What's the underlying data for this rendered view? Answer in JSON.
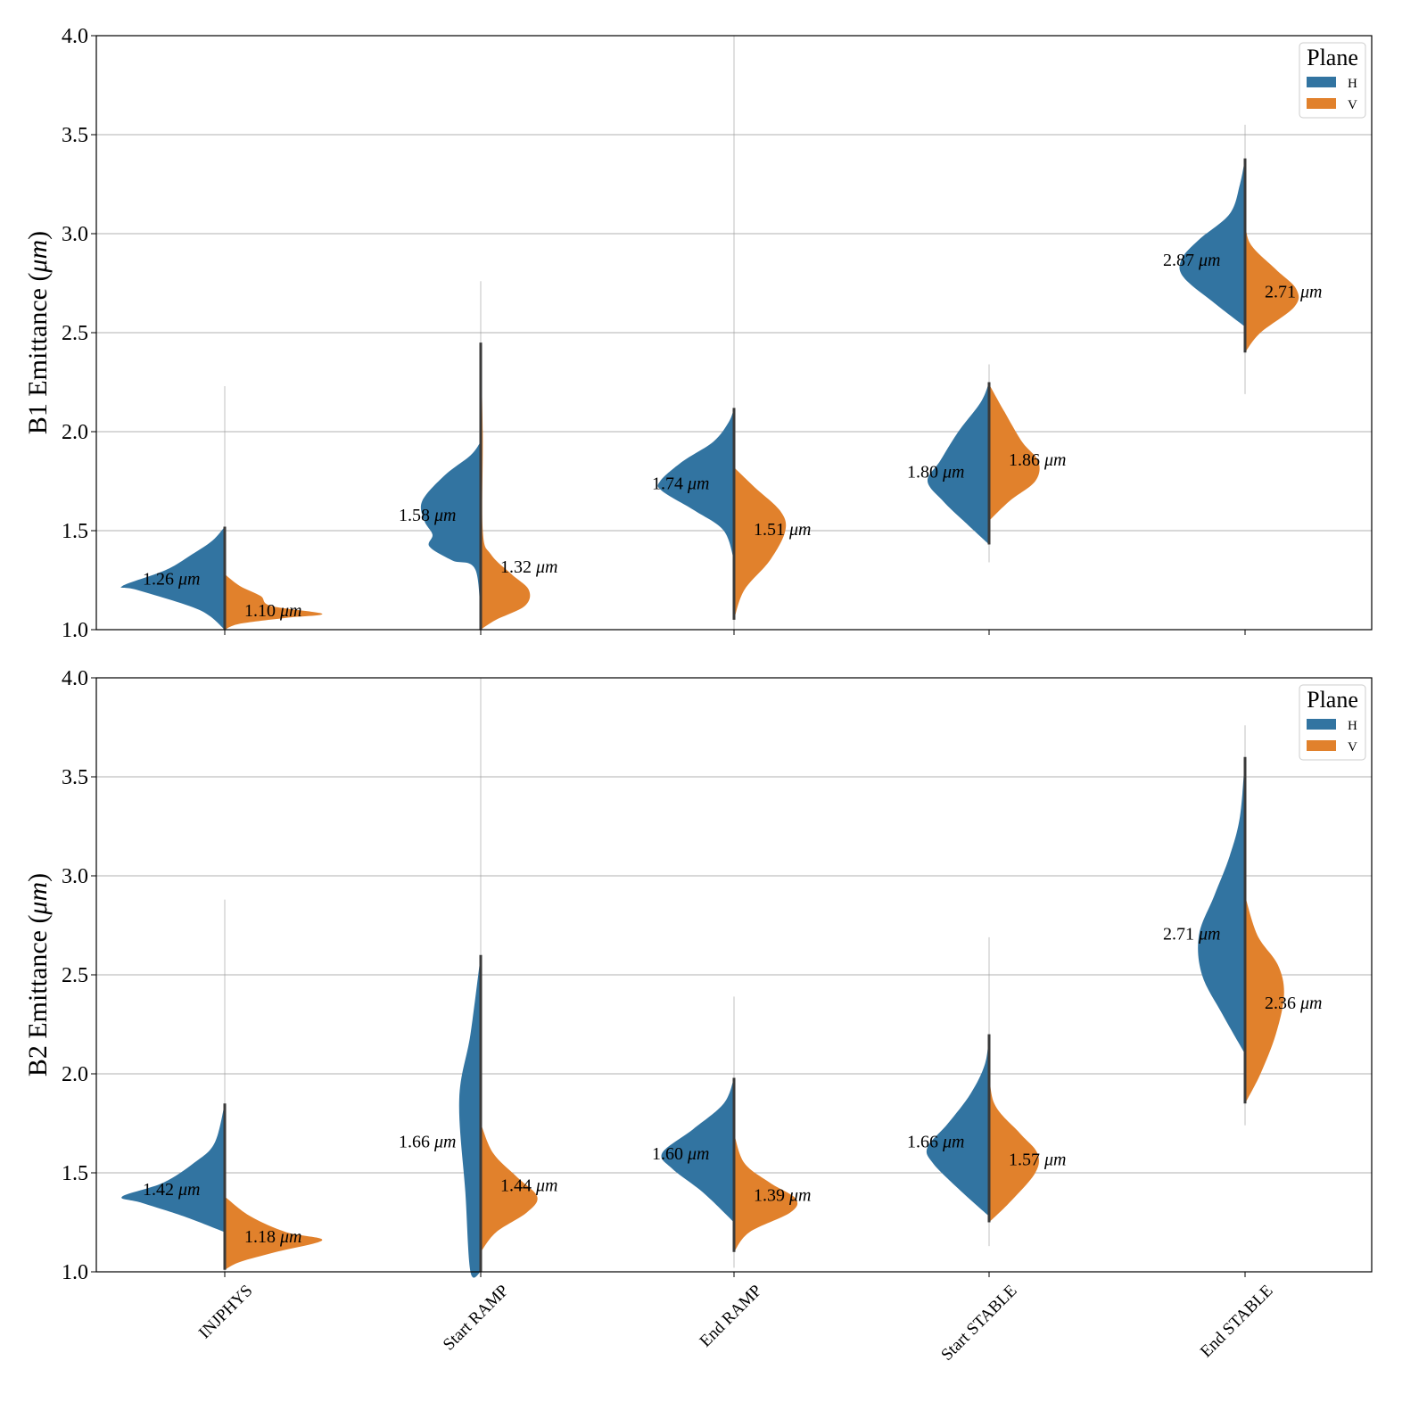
{
  "colors": {
    "H": "#3274a1",
    "V": "#e1812c",
    "grid": "#b0b0b0",
    "inner": "#3a3a3a"
  },
  "chart_data": [
    {
      "type": "violin",
      "ylabel": "B1 Emittance (",
      "ylabel_unit": "μm",
      "ylabel_close": ")",
      "ylim": [
        1.0,
        4.0
      ],
      "yticks": [
        "1.0",
        "1.5",
        "2.0",
        "2.5",
        "3.0",
        "3.5",
        "4.0"
      ],
      "ytick_values": [
        1.0,
        1.5,
        2.0,
        2.5,
        3.0,
        3.5,
        4.0
      ],
      "grid": true,
      "legend": {
        "title": "Plane",
        "entries": [
          "H",
          "V"
        ],
        "placement": "top-right"
      },
      "categories": [
        "INJPHYS",
        "Start RAMP",
        "End RAMP",
        "Start STABLE",
        "End STABLE"
      ],
      "series": [
        {
          "name": "H",
          "medians": [
            1.26,
            1.58,
            1.74,
            1.8,
            2.87
          ],
          "labels": [
            "1.26",
            "1.58",
            "1.74",
            "1.80",
            "2.87"
          ],
          "range": [
            [
              1.0,
              2.23
            ],
            [
              1.0,
              2.76
            ],
            [
              1.0,
              4.0
            ],
            [
              1.34,
              2.34
            ],
            [
              2.19,
              3.55
            ]
          ],
          "density": [
            [
              [
                1.0,
                0.0
              ],
              [
                1.1,
                0.25
              ],
              [
                1.2,
                0.85
              ],
              [
                1.22,
                1.0
              ],
              [
                1.3,
                0.58
              ],
              [
                1.38,
                0.32
              ],
              [
                1.45,
                0.12
              ],
              [
                1.52,
                0.0
              ]
            ],
            [
              [
                1.0,
                0.0
              ],
              [
                1.3,
                0.05
              ],
              [
                1.35,
                0.28
              ],
              [
                1.42,
                0.5
              ],
              [
                1.48,
                0.47
              ],
              [
                1.55,
                0.55
              ],
              [
                1.65,
                0.57
              ],
              [
                1.78,
                0.35
              ],
              [
                1.88,
                0.1
              ],
              [
                1.95,
                0.0
              ]
            ],
            [
              [
                1.35,
                0.0
              ],
              [
                1.5,
                0.1
              ],
              [
                1.6,
                0.38
              ],
              [
                1.7,
                0.7
              ],
              [
                1.75,
                0.72
              ],
              [
                1.85,
                0.5
              ],
              [
                1.95,
                0.2
              ],
              [
                2.05,
                0.05
              ],
              [
                2.12,
                0.0
              ]
            ],
            [
              [
                1.43,
                0.0
              ],
              [
                1.55,
                0.25
              ],
              [
                1.65,
                0.45
              ],
              [
                1.75,
                0.6
              ],
              [
                1.85,
                0.48
              ],
              [
                2.0,
                0.3
              ],
              [
                2.15,
                0.08
              ],
              [
                2.25,
                0.0
              ]
            ],
            [
              [
                2.53,
                0.0
              ],
              [
                2.65,
                0.3
              ],
              [
                2.78,
                0.6
              ],
              [
                2.87,
                0.62
              ],
              [
                2.97,
                0.45
              ],
              [
                3.1,
                0.15
              ],
              [
                3.25,
                0.05
              ],
              [
                3.38,
                0.0
              ]
            ]
          ]
        },
        {
          "name": "V",
          "medians": [
            1.1,
            1.32,
            1.51,
            1.86,
            2.71
          ],
          "labels": [
            "1.10",
            "1.32",
            "1.51",
            "1.86",
            "2.71"
          ],
          "range": [
            [
              1.0,
              2.1
            ],
            [
              1.0,
              2.76
            ],
            [
              1.0,
              3.36
            ],
            [
              1.34,
              2.34
            ],
            [
              2.19,
              3.55
            ]
          ],
          "density": [
            [
              [
                1.0,
                0.0
              ],
              [
                1.03,
                0.15
              ],
              [
                1.06,
                0.6
              ],
              [
                1.08,
                0.95
              ],
              [
                1.12,
                0.45
              ],
              [
                1.17,
                0.35
              ],
              [
                1.22,
                0.15
              ],
              [
                1.28,
                0.0
              ]
            ],
            [
              [
                1.0,
                0.0
              ],
              [
                1.05,
                0.15
              ],
              [
                1.12,
                0.43
              ],
              [
                1.2,
                0.47
              ],
              [
                1.28,
                0.3
              ],
              [
                1.38,
                0.1
              ],
              [
                1.5,
                0.02
              ],
              [
                2.0,
                0.02
              ],
              [
                2.45,
                0.0
              ]
            ],
            [
              [
                1.05,
                0.0
              ],
              [
                1.2,
                0.1
              ],
              [
                1.35,
                0.35
              ],
              [
                1.5,
                0.5
              ],
              [
                1.6,
                0.45
              ],
              [
                1.72,
                0.2
              ],
              [
                1.82,
                0.0
              ]
            ],
            [
              [
                1.55,
                0.0
              ],
              [
                1.65,
                0.2
              ],
              [
                1.75,
                0.45
              ],
              [
                1.85,
                0.48
              ],
              [
                1.95,
                0.32
              ],
              [
                2.1,
                0.15
              ],
              [
                2.24,
                0.0
              ]
            ],
            [
              [
                2.4,
                0.0
              ],
              [
                2.5,
                0.15
              ],
              [
                2.63,
                0.48
              ],
              [
                2.72,
                0.5
              ],
              [
                2.82,
                0.3
              ],
              [
                2.95,
                0.05
              ],
              [
                3.08,
                0.0
              ]
            ]
          ]
        }
      ]
    },
    {
      "type": "violin",
      "ylabel": "B2 Emittance (",
      "ylabel_unit": "μm",
      "ylabel_close": ")",
      "ylim": [
        1.0,
        4.0
      ],
      "yticks": [
        "1.0",
        "1.5",
        "2.0",
        "2.5",
        "3.0",
        "3.5",
        "4.0"
      ],
      "ytick_values": [
        1.0,
        1.5,
        2.0,
        2.5,
        3.0,
        3.5,
        4.0
      ],
      "grid": true,
      "legend": {
        "title": "Plane",
        "entries": [
          "H",
          "V"
        ],
        "placement": "top-right"
      },
      "categories": [
        "INJPHYS",
        "Start RAMP",
        "End RAMP",
        "Start STABLE",
        "End STABLE"
      ],
      "series": [
        {
          "name": "H",
          "medians": [
            1.42,
            1.66,
            1.6,
            1.66,
            2.71
          ],
          "labels": [
            "1.42",
            "1.66",
            "1.60",
            "1.66",
            "2.71"
          ],
          "range": [
            [
              1.0,
              2.88
            ],
            [
              1.0,
              4.0
            ],
            [
              1.02,
              2.39
            ],
            [
              1.13,
              2.69
            ],
            [
              1.74,
              3.76
            ]
          ],
          "density": [
            [
              [
                1.2,
                0.0
              ],
              [
                1.28,
                0.4
              ],
              [
                1.35,
                0.82
              ],
              [
                1.38,
                1.0
              ],
              [
                1.45,
                0.6
              ],
              [
                1.55,
                0.3
              ],
              [
                1.65,
                0.1
              ],
              [
                1.85,
                0.0
              ]
            ],
            [
              [
                1.0,
                0.0
              ],
              [
                1.0,
                0.1
              ],
              [
                1.4,
                0.15
              ],
              [
                1.87,
                0.21
              ],
              [
                2.2,
                0.1
              ],
              [
                2.6,
                0.0
              ]
            ],
            [
              [
                1.25,
                0.0
              ],
              [
                1.4,
                0.3
              ],
              [
                1.52,
                0.6
              ],
              [
                1.6,
                0.7
              ],
              [
                1.72,
                0.4
              ],
              [
                1.85,
                0.1
              ],
              [
                1.98,
                0.0
              ]
            ],
            [
              [
                1.28,
                0.0
              ],
              [
                1.42,
                0.3
              ],
              [
                1.55,
                0.55
              ],
              [
                1.63,
                0.6
              ],
              [
                1.75,
                0.4
              ],
              [
                1.9,
                0.18
              ],
              [
                2.05,
                0.04
              ],
              [
                2.2,
                0.0
              ]
            ],
            [
              [
                2.1,
                0.0
              ],
              [
                2.3,
                0.22
              ],
              [
                2.5,
                0.42
              ],
              [
                2.7,
                0.45
              ],
              [
                2.9,
                0.3
              ],
              [
                3.1,
                0.15
              ],
              [
                3.3,
                0.05
              ],
              [
                3.6,
                0.0
              ]
            ]
          ]
        },
        {
          "name": "V",
          "medians": [
            1.18,
            1.44,
            1.39,
            1.57,
            2.36
          ],
          "labels": [
            "1.18",
            "1.44",
            "1.39",
            "1.57",
            "2.36"
          ],
          "range": [
            [
              1.0,
              2.15
            ],
            [
              1.1,
              1.9
            ],
            [
              1.02,
              2.39
            ],
            [
              1.13,
              2.69
            ],
            [
              1.74,
              3.76
            ]
          ],
          "density": [
            [
              [
                1.01,
                0.0
              ],
              [
                1.05,
                0.15
              ],
              [
                1.1,
                0.5
              ],
              [
                1.16,
                0.95
              ],
              [
                1.2,
                0.6
              ],
              [
                1.28,
                0.25
              ],
              [
                1.38,
                0.0
              ]
            ],
            [
              [
                1.1,
                0.0
              ],
              [
                1.2,
                0.15
              ],
              [
                1.3,
                0.45
              ],
              [
                1.38,
                0.55
              ],
              [
                1.48,
                0.35
              ],
              [
                1.6,
                0.12
              ],
              [
                1.75,
                0.0
              ]
            ],
            [
              [
                1.1,
                0.0
              ],
              [
                1.2,
                0.15
              ],
              [
                1.3,
                0.55
              ],
              [
                1.37,
                0.6
              ],
              [
                1.45,
                0.35
              ],
              [
                1.55,
                0.1
              ],
              [
                1.7,
                0.0
              ]
            ],
            [
              [
                1.25,
                0.0
              ],
              [
                1.35,
                0.2
              ],
              [
                1.5,
                0.45
              ],
              [
                1.6,
                0.47
              ],
              [
                1.7,
                0.3
              ],
              [
                1.85,
                0.05
              ],
              [
                2.05,
                0.0
              ]
            ],
            [
              [
                1.85,
                0.0
              ],
              [
                2.0,
                0.15
              ],
              [
                2.2,
                0.3
              ],
              [
                2.4,
                0.38
              ],
              [
                2.55,
                0.32
              ],
              [
                2.7,
                0.12
              ],
              [
                2.9,
                0.0
              ]
            ]
          ]
        }
      ]
    }
  ],
  "unit": "μm"
}
